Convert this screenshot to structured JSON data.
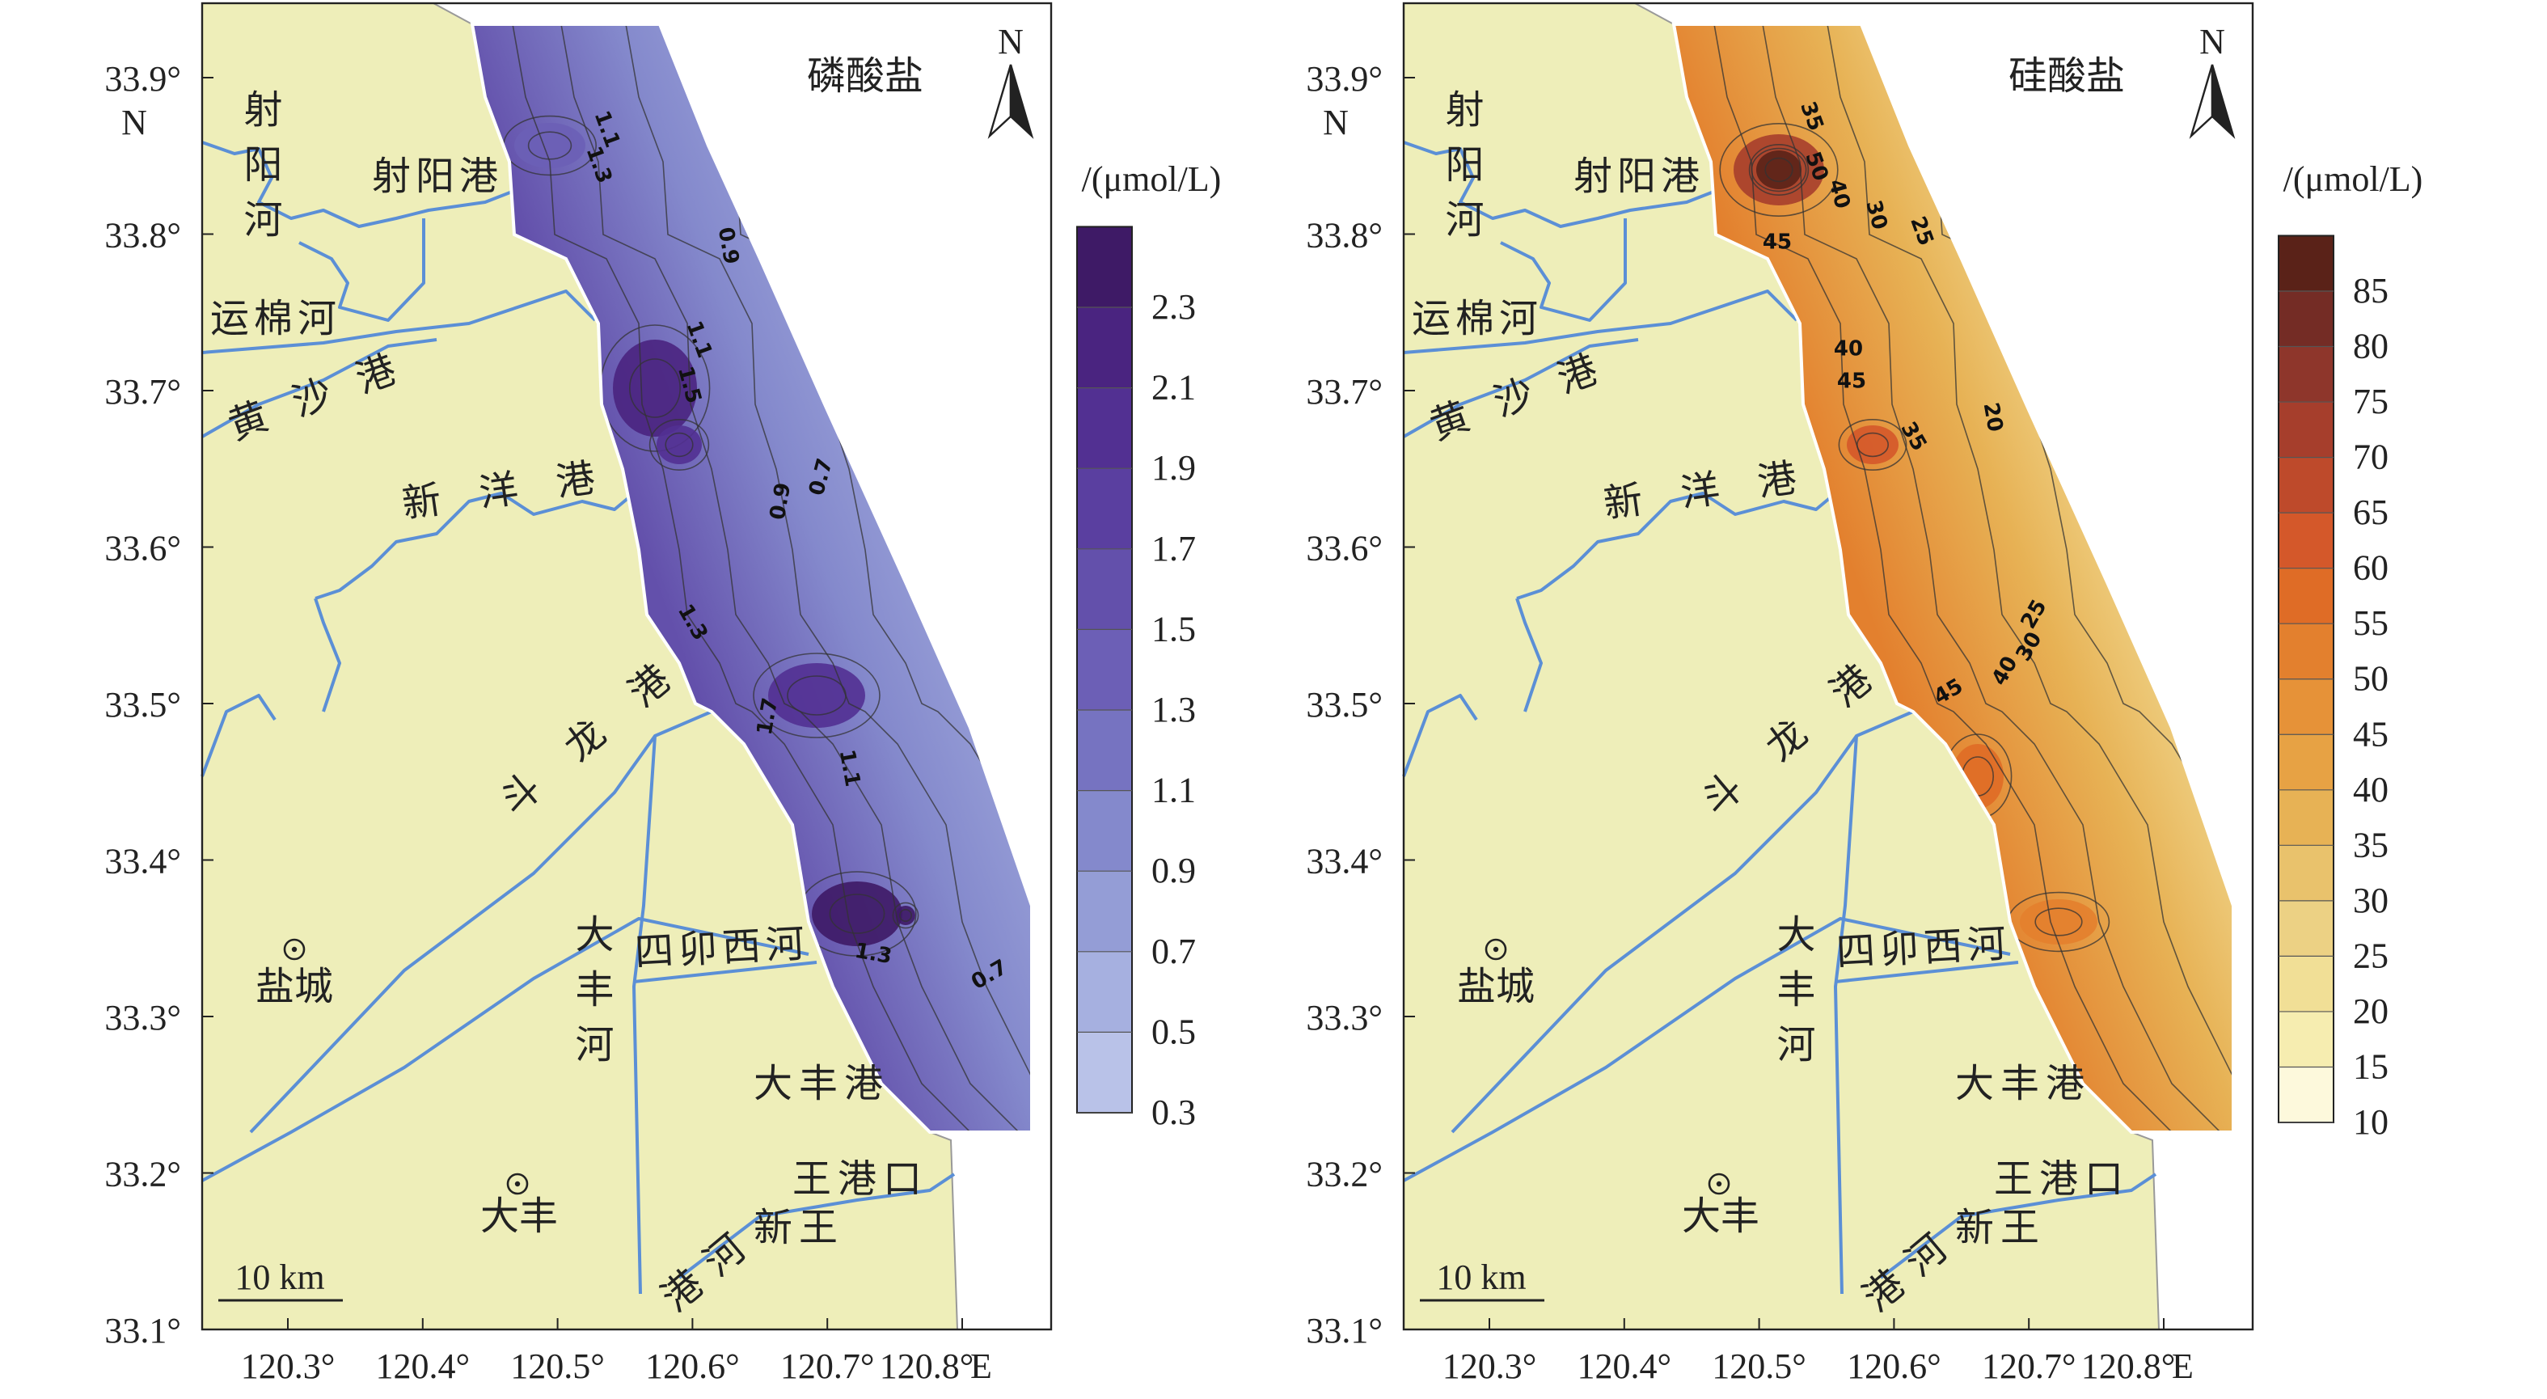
{
  "panels": [
    {
      "title": "磷酸盐",
      "north": "N",
      "unit": "/(μmol/L)",
      "colorbar_ticks": [
        0.3,
        0.5,
        0.7,
        0.9,
        1.1,
        1.3,
        1.5,
        1.7,
        1.9,
        2.1,
        2.3
      ],
      "colors": [
        "#b9c2e8",
        "#a6b0e0",
        "#949dd6",
        "#8489cc",
        "#7673c1",
        "#6c5fb6",
        "#6350ab",
        "#5a3fa0",
        "#523092",
        "#4a2480",
        "#3e1a66"
      ],
      "contour_labels": [
        1.1,
        1.3,
        0.9,
        1.1,
        1.5,
        0.9,
        0.7,
        1.3,
        1.7,
        1.1,
        1.3,
        0.7
      ]
    },
    {
      "title": "硅酸盐",
      "north": "N",
      "unit": "/(μmol/L)",
      "colorbar_ticks": [
        10,
        15,
        20,
        25,
        30,
        35,
        40,
        45,
        50,
        55,
        60,
        65,
        70,
        75,
        80,
        85
      ],
      "colors": [
        "#fdf9dc",
        "#f6edb0",
        "#f1df96",
        "#ecd184",
        "#e9c26c",
        "#e7b255",
        "#e7a244",
        "#e69238",
        "#e3802e",
        "#df6c26",
        "#d4582a",
        "#be4a2b",
        "#a63e2c",
        "#8e362b",
        "#742c25",
        "#5a2218"
      ],
      "contour_labels": [
        35,
        50,
        40,
        30,
        25,
        45,
        40,
        45,
        35,
        20,
        25,
        30,
        40,
        45
      ]
    }
  ],
  "lat_ticks": [
    "33.9°",
    "33.8°",
    "33.7°",
    "33.6°",
    "33.5°",
    "33.4°",
    "33.3°",
    "33.2°",
    "33.1°"
  ],
  "lat_hemisphere": "N",
  "lon_ticks": [
    "120.3°",
    "120.4°",
    "120.5°",
    "120.6°",
    "120.7°",
    "120.8°"
  ],
  "lon_hemisphere": "E",
  "places": [
    "射阳河",
    "射阳港",
    "运棉河",
    "黄沙港",
    "新洋港",
    "斗龙港",
    "大丰河",
    "四卯西河",
    "大丰港",
    "王港口",
    "新王",
    "港河",
    "盐城",
    "大丰"
  ],
  "scale_bar": "10 km"
}
